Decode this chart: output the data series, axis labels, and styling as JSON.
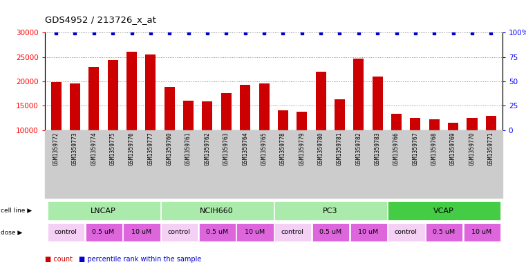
{
  "title": "GDS4952 / 213726_x_at",
  "samples": [
    "GSM1359772",
    "GSM1359773",
    "GSM1359774",
    "GSM1359775",
    "GSM1359776",
    "GSM1359777",
    "GSM1359760",
    "GSM1359761",
    "GSM1359762",
    "GSM1359763",
    "GSM1359764",
    "GSM1359765",
    "GSM1359778",
    "GSM1359779",
    "GSM1359780",
    "GSM1359781",
    "GSM1359782",
    "GSM1359783",
    "GSM1359766",
    "GSM1359767",
    "GSM1359768",
    "GSM1359769",
    "GSM1359770",
    "GSM1359771"
  ],
  "counts": [
    19900,
    19500,
    23000,
    24300,
    26100,
    25500,
    18800,
    16000,
    15900,
    17600,
    19300,
    19500,
    14000,
    13700,
    22000,
    16300,
    24600,
    21000,
    13400,
    12500,
    12200,
    11500,
    12500,
    12900
  ],
  "cell_lines": [
    {
      "name": "LNCAP",
      "start": 0,
      "end": 6,
      "color": "#aaeaaa"
    },
    {
      "name": "NCIH660",
      "start": 6,
      "end": 12,
      "color": "#aaeaaa"
    },
    {
      "name": "PC3",
      "start": 12,
      "end": 18,
      "color": "#aaeaaa"
    },
    {
      "name": "VCAP",
      "start": 18,
      "end": 24,
      "color": "#44cc44"
    }
  ],
  "dose_groups": [
    {
      "name": "control",
      "start": 0,
      "end": 2,
      "color": "#f5d0f5"
    },
    {
      "name": "0.5 uM",
      "start": 2,
      "end": 4,
      "color": "#dd66dd"
    },
    {
      "name": "10 uM",
      "start": 4,
      "end": 6,
      "color": "#dd66dd"
    },
    {
      "name": "control",
      "start": 6,
      "end": 8,
      "color": "#f5d0f5"
    },
    {
      "name": "0.5 uM",
      "start": 8,
      "end": 10,
      "color": "#dd66dd"
    },
    {
      "name": "10 uM",
      "start": 10,
      "end": 12,
      "color": "#dd66dd"
    },
    {
      "name": "control",
      "start": 12,
      "end": 14,
      "color": "#f5d0f5"
    },
    {
      "name": "0.5 uM",
      "start": 14,
      "end": 16,
      "color": "#dd66dd"
    },
    {
      "name": "10 uM",
      "start": 16,
      "end": 18,
      "color": "#dd66dd"
    },
    {
      "name": "control",
      "start": 18,
      "end": 20,
      "color": "#f5d0f5"
    },
    {
      "name": "0.5 uM",
      "start": 20,
      "end": 22,
      "color": "#dd66dd"
    },
    {
      "name": "10 uM",
      "start": 22,
      "end": 24,
      "color": "#dd66dd"
    }
  ],
  "bar_color": "#CC0000",
  "dot_color": "#0000CC",
  "ylim_left": [
    10000,
    30000
  ],
  "ylim_right": [
    0,
    100
  ],
  "yticks_left": [
    10000,
    15000,
    20000,
    25000,
    30000
  ],
  "yticks_right": [
    0,
    25,
    50,
    75,
    100
  ],
  "bg_color": "#ffffff",
  "grid_color": "#888888",
  "bar_width": 0.55
}
